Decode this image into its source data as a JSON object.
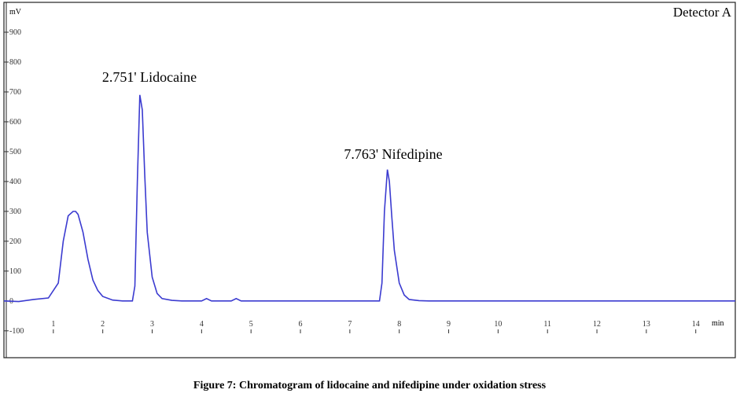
{
  "chart_data": {
    "type": "line",
    "y_label": "mV",
    "x_label": "min",
    "legend_text": "Detector A",
    "caption": "Figure 7: Chromatogram of lidocaine and nifedipine under oxidation stress",
    "annotations": [
      "2.751' Lidocaine",
      "7.763' Nifedipine"
    ],
    "x": [
      0,
      0.3,
      0.6,
      0.9,
      1.1,
      1.2,
      1.3,
      1.4,
      1.45,
      1.5,
      1.6,
      1.7,
      1.8,
      1.9,
      2.0,
      2.2,
      2.4,
      2.6,
      2.65,
      2.7,
      2.75,
      2.8,
      2.85,
      2.9,
      3.0,
      3.1,
      3.2,
      3.4,
      3.6,
      4.0,
      4.1,
      4.2,
      4.3,
      4.6,
      4.7,
      4.8,
      5,
      7,
      7.6,
      7.65,
      7.7,
      7.76,
      7.8,
      7.85,
      7.9,
      8.0,
      8.1,
      8.2,
      8.4,
      8.6,
      14.8
    ],
    "values": [
      0,
      -2,
      5,
      10,
      60,
      200,
      285,
      300,
      300,
      290,
      230,
      140,
      70,
      35,
      15,
      3,
      0,
      0,
      50,
      400,
      690,
      640,
      420,
      230,
      80,
      25,
      8,
      2,
      0,
      0,
      8,
      0,
      0,
      0,
      8,
      0,
      0,
      0,
      0,
      60,
      300,
      440,
      400,
      280,
      170,
      60,
      20,
      5,
      1,
      0,
      0
    ],
    "color": "#3b3bd0",
    "xlim": [
      0,
      14.8
    ],
    "ylim": [
      -190,
      1000
    ],
    "xticks": [
      1,
      2,
      3,
      4,
      5,
      6,
      7,
      8,
      9,
      10,
      11,
      12,
      13,
      14
    ],
    "yticks": [
      -100,
      0,
      100,
      200,
      300,
      400,
      500,
      600,
      700,
      800,
      900
    ]
  }
}
